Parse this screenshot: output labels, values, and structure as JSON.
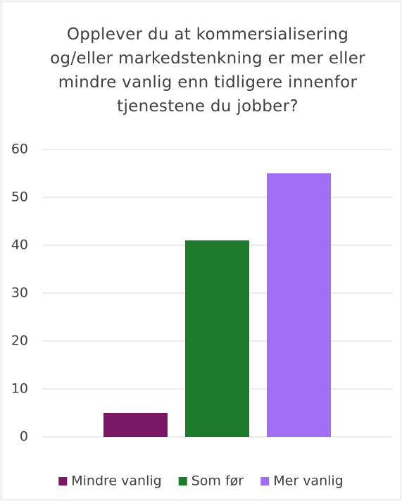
{
  "chart_data": {
    "type": "bar",
    "title": "Opplever du at kommersialisering og/eller markedstenkning er mer eller mindre vanlig enn tidligere innenfor tjenestene du jobber?",
    "categories": [
      null
    ],
    "series": [
      {
        "name": "Mindre vanlig",
        "color": "#7a1866",
        "values": [
          5
        ]
      },
      {
        "name": "Som før",
        "color": "#1d7a2a",
        "values": [
          41
        ]
      },
      {
        "name": "Mer vanlig",
        "color": "#a06ef0",
        "values": [
          55
        ]
      }
    ],
    "ylim": [
      0,
      60
    ],
    "yticks": [
      0,
      10,
      20,
      30,
      40,
      50,
      60
    ],
    "grid": true,
    "legend": "bottom"
  }
}
